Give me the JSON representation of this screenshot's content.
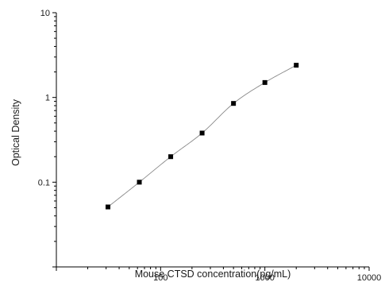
{
  "chart_data": {
    "type": "scatter",
    "xlabel": "Mouse CTSD concentration(pg/mL)",
    "ylabel": "Optical Density",
    "x_scale": "log",
    "y_scale": "log",
    "xlim": [
      10,
      10000
    ],
    "ylim": [
      0.01,
      10
    ],
    "x_ticks": [
      100,
      1000,
      10000
    ],
    "x_tick_labels": [
      "100",
      "1000",
      "10000"
    ],
    "y_ticks": [
      0.1,
      1,
      10
    ],
    "y_tick_labels": [
      "0.1",
      "1",
      "10"
    ],
    "grid": false,
    "legend": "none",
    "series": [
      {
        "x": [
          31.25,
          62.5,
          125,
          250,
          500,
          1000,
          2000
        ],
        "y": [
          0.051,
          0.1,
          0.2,
          0.38,
          0.85,
          1.5,
          2.4
        ],
        "marker": "square",
        "fit_line": true
      }
    ],
    "colors": {
      "points": "#000000",
      "curve": "#888888",
      "axes": "#000000"
    }
  }
}
